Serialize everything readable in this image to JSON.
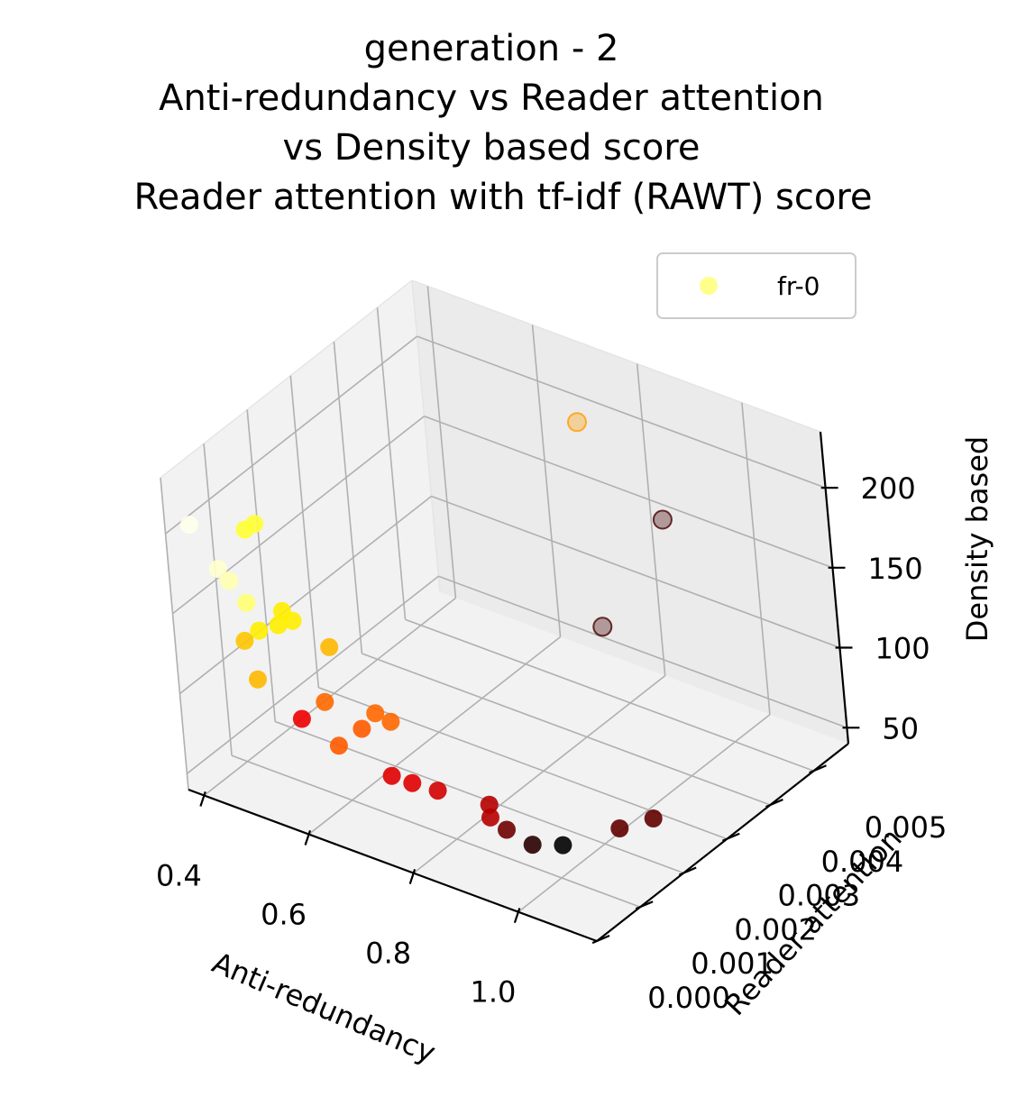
{
  "chart_data": {
    "type": "scatter",
    "projection": "3d",
    "title_lines": [
      "generation - 2",
      "Anti-redundancy vs Reader attention",
      "vs  Density based score",
      "Reader attention with tf-idf (RAWT) score"
    ],
    "xlabel": "Anti-redundancy",
    "ylabel": "Reader attention",
    "zlabel": "Density based",
    "x_ticks": [
      "0.4",
      "0.6",
      "0.8",
      "1.0"
    ],
    "y_ticks": [
      "0.000",
      "0.001",
      "0.002",
      "0.003",
      "0.004",
      "0.005"
    ],
    "z_ticks": [
      "50",
      "100",
      "150",
      "200"
    ],
    "xlim": [
      0.37,
      1.15
    ],
    "ylim": [
      0.0,
      0.0058
    ],
    "zlim": [
      40,
      235
    ],
    "grid": true,
    "legend": {
      "entries": [
        "fr-0"
      ],
      "placement": "upper right"
    },
    "colormap": "hot",
    "series": [
      {
        "name": "fr-0",
        "points": [
          {
            "x": 0.4,
            "y": 0.0002,
            "z": 205,
            "c": 0.98
          },
          {
            "x": 0.5,
            "y": 0.0003,
            "z": 212,
            "c": 0.8
          },
          {
            "x": 0.52,
            "y": 0.0003,
            "z": 218,
            "c": 0.8
          },
          {
            "x": 0.44,
            "y": 0.0003,
            "z": 180,
            "c": 0.95
          },
          {
            "x": 0.46,
            "y": 0.0003,
            "z": 175,
            "c": 0.92
          },
          {
            "x": 0.49,
            "y": 0.0003,
            "z": 165,
            "c": 0.86
          },
          {
            "x": 0.55,
            "y": 0.0004,
            "z": 165,
            "c": 0.72
          },
          {
            "x": 0.56,
            "y": 0.0005,
            "z": 158,
            "c": 0.72
          },
          {
            "x": 0.54,
            "y": 0.0004,
            "z": 155,
            "c": 0.72
          },
          {
            "x": 0.51,
            "y": 0.0003,
            "z": 150,
            "c": 0.72
          },
          {
            "x": 0.48,
            "y": 0.0003,
            "z": 140,
            "c": 0.66
          },
          {
            "x": 0.6,
            "y": 0.0008,
            "z": 140,
            "c": 0.64
          },
          {
            "x": 0.49,
            "y": 0.0004,
            "z": 115,
            "c": 0.64
          },
          {
            "x": 0.6,
            "y": 0.0006,
            "z": 110,
            "c": 0.52
          },
          {
            "x": 0.57,
            "y": 0.0004,
            "z": 100,
            "c": 0.34
          },
          {
            "x": 0.67,
            "y": 0.0009,
            "z": 105,
            "c": 0.52
          },
          {
            "x": 0.69,
            "y": 0.001,
            "z": 100,
            "c": 0.52
          },
          {
            "x": 0.65,
            "y": 0.0008,
            "z": 95,
            "c": 0.5
          },
          {
            "x": 0.62,
            "y": 0.0006,
            "z": 85,
            "c": 0.5
          },
          {
            "x": 0.71,
            "y": 0.0007,
            "z": 75,
            "c": 0.32
          },
          {
            "x": 0.74,
            "y": 0.0008,
            "z": 72,
            "c": 0.32
          },
          {
            "x": 0.78,
            "y": 0.0009,
            "z": 70,
            "c": 0.3
          },
          {
            "x": 0.87,
            "y": 0.001,
            "z": 70,
            "c": 0.26
          },
          {
            "x": 0.87,
            "y": 0.001,
            "z": 62,
            "c": 0.26
          },
          {
            "x": 0.9,
            "y": 0.001,
            "z": 58,
            "c": 0.16
          },
          {
            "x": 0.93,
            "y": 0.0012,
            "z": 48,
            "c": 0.06
          },
          {
            "x": 1.05,
            "y": 0.0018,
            "z": 60,
            "c": 0.14
          },
          {
            "x": 1.1,
            "y": 0.002,
            "z": 68,
            "c": 0.14
          },
          {
            "x": 0.99,
            "y": 0.0012,
            "z": 55,
            "c": 0.0
          },
          {
            "x": 0.79,
            "y": 0.0045,
            "z": 225,
            "c": 0.6,
            "faded": true
          },
          {
            "x": 0.85,
            "y": 0.0055,
            "z": 150,
            "c": 0.1,
            "faded": true
          },
          {
            "x": 0.85,
            "y": 0.004,
            "z": 115,
            "c": 0.1,
            "faded": true
          }
        ]
      }
    ]
  }
}
